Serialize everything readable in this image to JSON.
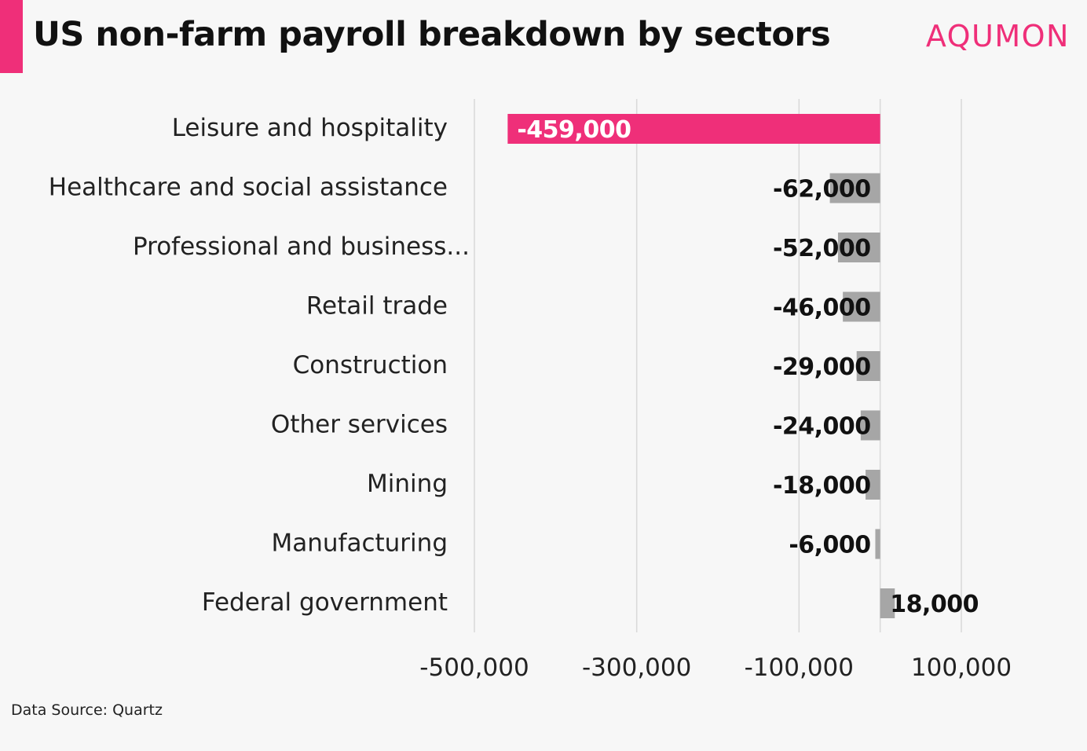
{
  "title": "US non-farm payroll breakdown by sectors",
  "brand": "AQUMON",
  "source": "Data Source: Quartz",
  "colors": {
    "accent": "#ef2f79",
    "bar_default": "#a6a6a6",
    "grid": "#d9d9d9",
    "background": "#f7f7f7"
  },
  "chart_data": {
    "type": "bar",
    "orientation": "horizontal",
    "categories": [
      "Leisure and hospitality",
      "Healthcare and social assistance",
      "Professional and business...",
      "Retail trade",
      "Construction",
      "Other services",
      "Mining",
      "Manufacturing",
      "Federal government"
    ],
    "values": [
      -459000,
      -62000,
      -52000,
      -46000,
      -29000,
      -24000,
      -18000,
      -6000,
      18000
    ],
    "data_labels": [
      "-459,000",
      "-62,000",
      "-52,000",
      "-46,000",
      "-29,000",
      "-24,000",
      "-18,000",
      "-6,000",
      "18,000"
    ],
    "highlight_index": 0,
    "xticks": [
      -500000,
      -300000,
      -100000,
      100000
    ],
    "xtick_labels": [
      "-500,000",
      "-300,000",
      "-100,000",
      "100,000"
    ],
    "xlim": [
      -500000,
      100000
    ],
    "grid": true
  }
}
